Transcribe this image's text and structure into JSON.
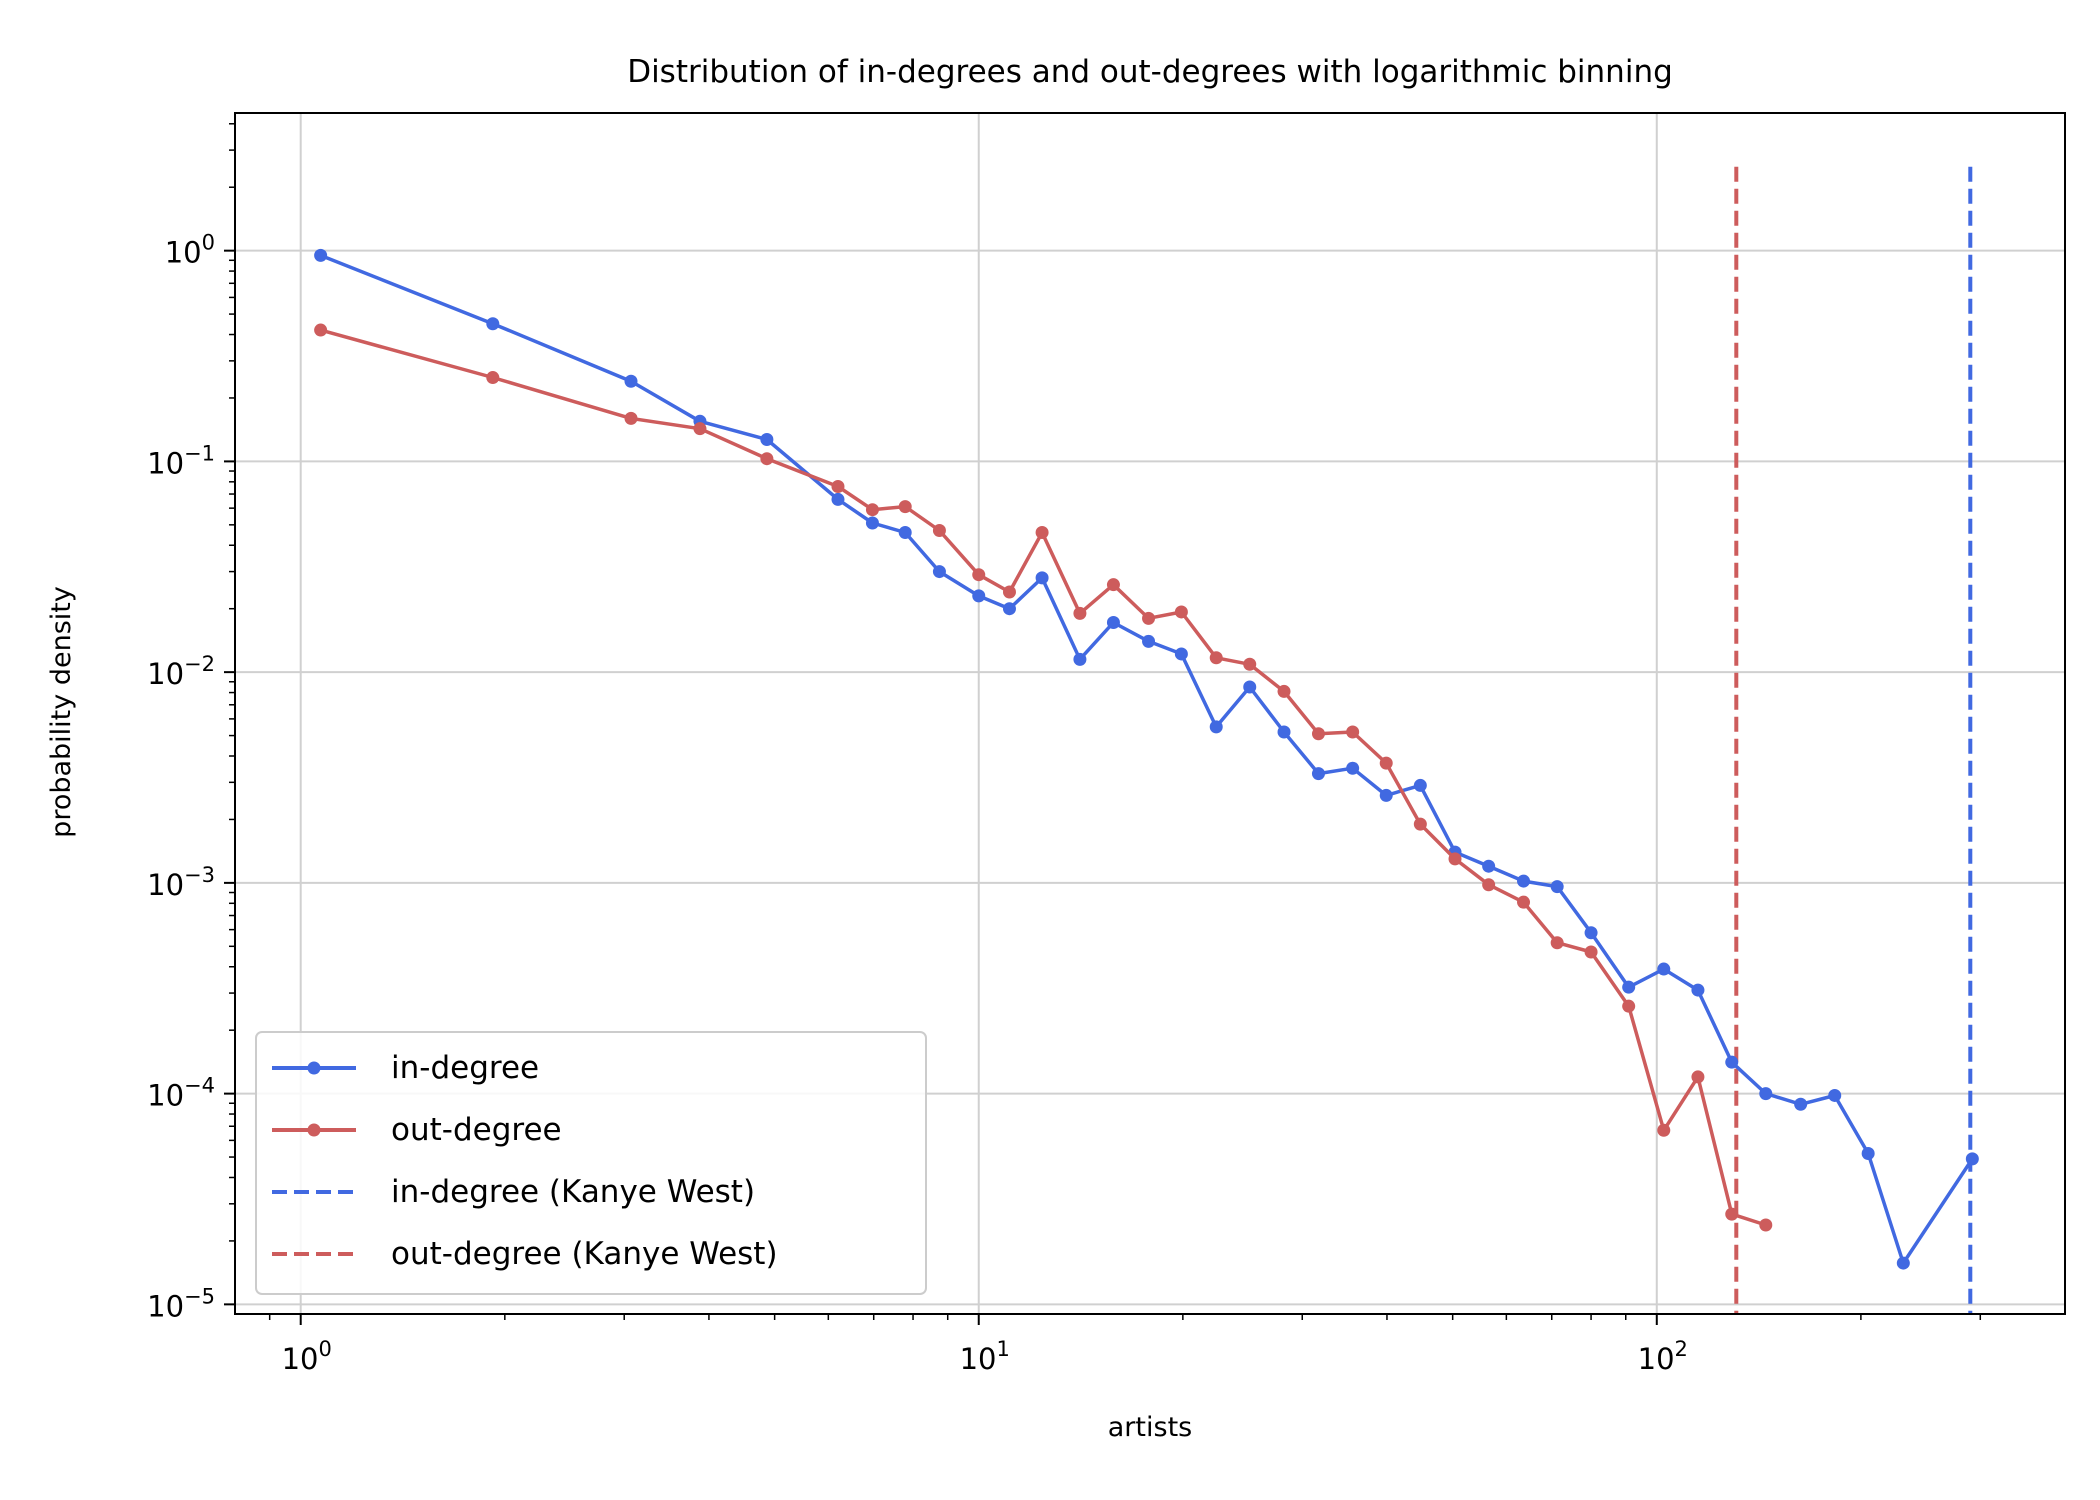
{
  "chart_data": {
    "type": "line",
    "title": "Distribution of in-degrees and out-degrees with logarithmic binning",
    "xlabel": "artists",
    "ylabel": "probability density",
    "xscale": "log",
    "yscale": "log",
    "xlim": [
      0.8,
      400
    ],
    "ylim": [
      9e-06,
      4.5
    ],
    "grid": true,
    "legend_position": "lower-left",
    "x_ticks": [
      {
        "label": "10",
        "exp": "0",
        "value": 1
      },
      {
        "label": "10",
        "exp": "1",
        "value": 10
      },
      {
        "label": "10",
        "exp": "2",
        "value": 100
      }
    ],
    "y_ticks": [
      {
        "label": "10",
        "exp": "0",
        "value": 1
      },
      {
        "label": "10",
        "exp": "−1",
        "value": 0.1
      },
      {
        "label": "10",
        "exp": "−2",
        "value": 0.01
      },
      {
        "label": "10",
        "exp": "−3",
        "value": 0.001
      },
      {
        "label": "10",
        "exp": "−4",
        "value": 0.0001
      },
      {
        "label": "10",
        "exp": "−5",
        "value": 1e-05
      }
    ],
    "series": [
      {
        "name": "in-degree",
        "color": "#4169e1",
        "style": "solid-marker",
        "x": [
          1.07,
          1.92,
          3.07,
          3.88,
          4.87,
          6.2,
          6.97,
          7.79,
          8.75,
          10.0,
          11.1,
          12.4,
          14.1,
          15.8,
          17.8,
          19.9,
          22.4,
          25.1,
          28.2,
          31.7,
          35.6,
          39.9,
          44.8,
          50.4,
          56.5,
          63.6,
          71.3,
          80.0,
          90.9,
          102.4,
          115.0,
          129.0,
          144.8,
          163.0,
          183.0,
          205.0,
          231.0,
          292.0
        ],
        "y": [
          0.95,
          0.45,
          0.24,
          0.155,
          0.127,
          0.066,
          0.051,
          0.046,
          0.03,
          0.023,
          0.02,
          0.028,
          0.0115,
          0.0172,
          0.014,
          0.0122,
          0.0055,
          0.0085,
          0.0052,
          0.0033,
          0.0035,
          0.0026,
          0.0029,
          0.0014,
          0.0012,
          0.00102,
          0.00096,
          0.00058,
          0.00032,
          0.00039,
          0.00031,
          0.000141,
          0.0001,
          8.9e-05,
          9.8e-05,
          5.2e-05,
          1.57e-05,
          4.9e-05
        ]
      },
      {
        "name": "out-degree",
        "color": "#cd5c5c",
        "style": "solid-marker",
        "x": [
          1.07,
          1.92,
          3.07,
          3.88,
          4.87,
          6.2,
          6.97,
          7.79,
          8.75,
          10.0,
          11.1,
          12.4,
          14.1,
          15.8,
          17.8,
          19.9,
          22.4,
          25.1,
          28.2,
          31.7,
          35.6,
          39.9,
          44.8,
          50.4,
          56.5,
          63.6,
          71.3,
          80.0,
          90.9,
          102.4,
          115.0,
          129.0,
          144.8
        ],
        "y": [
          0.42,
          0.25,
          0.16,
          0.143,
          0.103,
          0.076,
          0.059,
          0.061,
          0.047,
          0.029,
          0.024,
          0.046,
          0.019,
          0.026,
          0.018,
          0.0193,
          0.0117,
          0.0109,
          0.0081,
          0.0051,
          0.0052,
          0.0037,
          0.0019,
          0.0013,
          0.00098,
          0.00081,
          0.00052,
          0.00047,
          0.00026,
          6.7e-05,
          0.00012,
          2.68e-05,
          2.38e-05
        ]
      }
    ],
    "vlines": [
      {
        "name": "in-degree (Kanye West)",
        "color": "#4169e1",
        "x": 290,
        "y_top": 2.5
      },
      {
        "name": "out-degree (Kanye West)",
        "color": "#cd5c5c",
        "x": 131,
        "y_top": 2.5
      }
    ]
  }
}
